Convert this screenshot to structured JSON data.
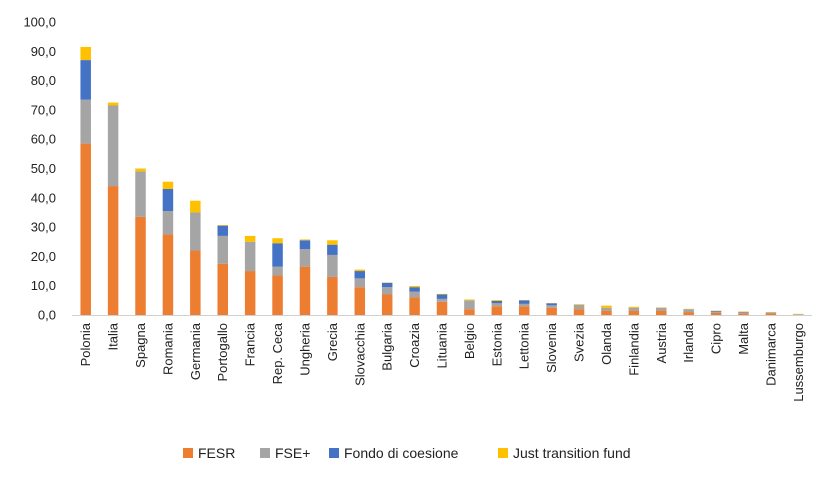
{
  "chart_data": {
    "type": "bar",
    "stacked": true,
    "title": "",
    "xlabel": "",
    "ylabel": "",
    "ylim": [
      0,
      100
    ],
    "y_ticks": [
      "0,0",
      "10,0",
      "20,0",
      "30,0",
      "40,0",
      "50,0",
      "60,0",
      "70,0",
      "80,0",
      "90,0",
      "100,0"
    ],
    "grid": false,
    "legend_position": "bottom",
    "categories": [
      "Polonia",
      "Italia",
      "Spagna",
      "Romania",
      "Germania",
      "Portogallo",
      "Francia",
      "Rep. Ceca",
      "Ungheria",
      "Grecia",
      "Slovacchia",
      "Bulgaria",
      "Croazia",
      "Lituania",
      "Belgio",
      "Estonia",
      "Lettonia",
      "Slovenia",
      "Svezia",
      "Olanda",
      "Finlandia",
      "Austria",
      "Irlanda",
      "Cipro",
      "Malta",
      "Danimarca",
      "Lussemburgo"
    ],
    "series": [
      {
        "name": "FESR",
        "color": "#ED7D31",
        "values": [
          58.5,
          44.0,
          33.5,
          27.5,
          22.0,
          17.5,
          15.0,
          13.5,
          16.5,
          13.0,
          9.5,
          7.0,
          6.0,
          4.5,
          2.0,
          3.0,
          3.0,
          2.5,
          2.0,
          1.5,
          1.5,
          1.5,
          1.0,
          0.7,
          0.6,
          0.5,
          0.1
        ]
      },
      {
        "name": "FSE+",
        "color": "#A5A5A5",
        "values": [
          15.0,
          27.5,
          15.5,
          8.0,
          13.0,
          9.5,
          10.0,
          3.0,
          6.0,
          7.5,
          3.0,
          2.5,
          2.0,
          1.0,
          3.0,
          1.0,
          0.8,
          0.8,
          1.5,
          1.0,
          1.0,
          1.0,
          1.0,
          0.5,
          0.3,
          0.4,
          0.2
        ]
      },
      {
        "name": "Fondo di coesione",
        "color": "#4472C4",
        "values": [
          13.5,
          0,
          0,
          7.5,
          0,
          3.5,
          0,
          8.0,
          3.0,
          3.5,
          2.5,
          1.5,
          1.5,
          1.5,
          0,
          0.8,
          1.2,
          0.7,
          0,
          0,
          0,
          0,
          0,
          0.2,
          0.2,
          0,
          0
        ]
      },
      {
        "name": "Just transition fund",
        "color": "#FFC000",
        "values": [
          4.5,
          1.0,
          1.0,
          2.5,
          4.0,
          0.2,
          2.0,
          1.7,
          0.3,
          1.5,
          0.5,
          0.1,
          0.4,
          0.2,
          0.3,
          0.3,
          0.1,
          0.1,
          0.2,
          0.7,
          0.3,
          0.1,
          0.1,
          0.1,
          0.1,
          0.1,
          0.1
        ]
      }
    ]
  }
}
